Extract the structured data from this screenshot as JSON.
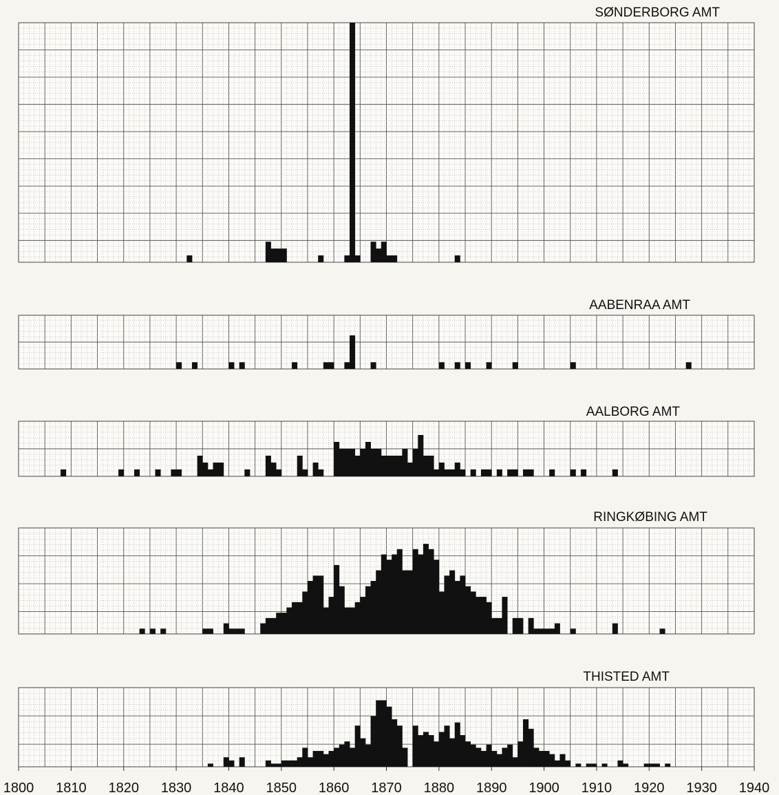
{
  "chart_data": {
    "type": "bar",
    "x_axis": {
      "range": [
        1800,
        1940
      ],
      "ticks": [
        1800,
        1810,
        1820,
        1830,
        1840,
        1850,
        1860,
        1870,
        1880,
        1890,
        1900,
        1910,
        1920,
        1930,
        1940
      ],
      "tick_labels": [
        "1800",
        "1810",
        "1820",
        "1830",
        "1840",
        "1850",
        "1860",
        "1870",
        "1880",
        "1890",
        "1900",
        "1910",
        "1920",
        "1930",
        "1940"
      ]
    },
    "grid": true,
    "colors": {
      "bar": "#111111",
      "grid_major": "#555555",
      "grid_minor": "#9a9a9a",
      "background": "#f7f5f0"
    },
    "panels": [
      {
        "title": "SØNDERBORG AMT",
        "ymax": 35,
        "bars": [
          [
            1832,
            1
          ],
          [
            1847,
            3
          ],
          [
            1848,
            2
          ],
          [
            1849,
            2
          ],
          [
            1850,
            2
          ],
          [
            1857,
            1
          ],
          [
            1862,
            1
          ],
          [
            1863,
            35
          ],
          [
            1864,
            1
          ],
          [
            1867,
            3
          ],
          [
            1868,
            2
          ],
          [
            1869,
            3
          ],
          [
            1870,
            1
          ],
          [
            1871,
            1
          ],
          [
            1883,
            1
          ]
        ]
      },
      {
        "title": "AABENRAA AMT",
        "ymax": 8,
        "bars": [
          [
            1830,
            1
          ],
          [
            1833,
            1
          ],
          [
            1840,
            1
          ],
          [
            1842,
            1
          ],
          [
            1852,
            1
          ],
          [
            1858,
            1
          ],
          [
            1859,
            1
          ],
          [
            1862,
            1
          ],
          [
            1863,
            5
          ],
          [
            1867,
            1
          ],
          [
            1880,
            1
          ],
          [
            1883,
            1
          ],
          [
            1885,
            1
          ],
          [
            1889,
            1
          ],
          [
            1894,
            1
          ],
          [
            1905,
            1
          ],
          [
            1927,
            1
          ]
        ]
      },
      {
        "title": "AALBORG AMT",
        "ymax": 8,
        "bars": [
          [
            1808,
            1
          ],
          [
            1819,
            1
          ],
          [
            1822,
            1
          ],
          [
            1826,
            1
          ],
          [
            1829,
            1
          ],
          [
            1830,
            1
          ],
          [
            1834,
            3
          ],
          [
            1835,
            2
          ],
          [
            1836,
            1
          ],
          [
            1837,
            2
          ],
          [
            1838,
            2
          ],
          [
            1843,
            1
          ],
          [
            1847,
            3
          ],
          [
            1848,
            2
          ],
          [
            1849,
            1
          ],
          [
            1853,
            3
          ],
          [
            1854,
            1
          ],
          [
            1856,
            2
          ],
          [
            1857,
            1
          ],
          [
            1860,
            5
          ],
          [
            1861,
            4
          ],
          [
            1862,
            4
          ],
          [
            1863,
            4
          ],
          [
            1864,
            3
          ],
          [
            1865,
            4
          ],
          [
            1866,
            5
          ],
          [
            1867,
            4
          ],
          [
            1868,
            4
          ],
          [
            1869,
            3
          ],
          [
            1870,
            3
          ],
          [
            1871,
            3
          ],
          [
            1872,
            3
          ],
          [
            1873,
            4
          ],
          [
            1874,
            2
          ],
          [
            1875,
            4
          ],
          [
            1876,
            6
          ],
          [
            1877,
            3
          ],
          [
            1878,
            3
          ],
          [
            1879,
            1
          ],
          [
            1880,
            2
          ],
          [
            1881,
            1
          ],
          [
            1882,
            1
          ],
          [
            1883,
            2
          ],
          [
            1884,
            1
          ],
          [
            1886,
            1
          ],
          [
            1888,
            1
          ],
          [
            1889,
            1
          ],
          [
            1891,
            1
          ],
          [
            1893,
            1
          ],
          [
            1894,
            1
          ],
          [
            1896,
            1
          ],
          [
            1897,
            1
          ],
          [
            1901,
            1
          ],
          [
            1905,
            1
          ],
          [
            1907,
            1
          ],
          [
            1913,
            1
          ]
        ]
      },
      {
        "title": "RINGKØBING AMT",
        "ymax": 20,
        "bars": [
          [
            1823,
            1
          ],
          [
            1825,
            1
          ],
          [
            1827,
            1
          ],
          [
            1835,
            1
          ],
          [
            1836,
            1
          ],
          [
            1839,
            2
          ],
          [
            1840,
            1
          ],
          [
            1841,
            1
          ],
          [
            1842,
            1
          ],
          [
            1846,
            2
          ],
          [
            1847,
            3
          ],
          [
            1848,
            3
          ],
          [
            1849,
            4
          ],
          [
            1850,
            4
          ],
          [
            1851,
            5
          ],
          [
            1852,
            6
          ],
          [
            1853,
            6
          ],
          [
            1854,
            8
          ],
          [
            1855,
            10
          ],
          [
            1856,
            11
          ],
          [
            1857,
            11
          ],
          [
            1858,
            5
          ],
          [
            1859,
            7
          ],
          [
            1860,
            13
          ],
          [
            1861,
            9
          ],
          [
            1862,
            5
          ],
          [
            1863,
            5
          ],
          [
            1864,
            6
          ],
          [
            1865,
            7
          ],
          [
            1866,
            9
          ],
          [
            1867,
            10
          ],
          [
            1868,
            12
          ],
          [
            1869,
            15
          ],
          [
            1870,
            14
          ],
          [
            1871,
            15
          ],
          [
            1872,
            16
          ],
          [
            1873,
            12
          ],
          [
            1874,
            12
          ],
          [
            1875,
            16
          ],
          [
            1876,
            15
          ],
          [
            1877,
            17
          ],
          [
            1878,
            16
          ],
          [
            1879,
            14
          ],
          [
            1880,
            8
          ],
          [
            1881,
            11
          ],
          [
            1882,
            12
          ],
          [
            1883,
            10
          ],
          [
            1884,
            11
          ],
          [
            1885,
            9
          ],
          [
            1886,
            8
          ],
          [
            1887,
            7
          ],
          [
            1888,
            7
          ],
          [
            1889,
            6
          ],
          [
            1890,
            3
          ],
          [
            1891,
            3
          ],
          [
            1892,
            7
          ],
          [
            1894,
            3
          ],
          [
            1895,
            3
          ],
          [
            1897,
            3
          ],
          [
            1898,
            1
          ],
          [
            1899,
            1
          ],
          [
            1900,
            1
          ],
          [
            1901,
            1
          ],
          [
            1902,
            2
          ],
          [
            1905,
            1
          ],
          [
            1913,
            2
          ],
          [
            1922,
            1
          ]
        ]
      },
      {
        "title": "THISTED AMT",
        "ymax": 25,
        "bars": [
          [
            1836,
            1
          ],
          [
            1839,
            3
          ],
          [
            1840,
            2
          ],
          [
            1842,
            3
          ],
          [
            1847,
            2
          ],
          [
            1848,
            1
          ],
          [
            1849,
            1
          ],
          [
            1850,
            2
          ],
          [
            1851,
            2
          ],
          [
            1852,
            2
          ],
          [
            1853,
            3
          ],
          [
            1854,
            6
          ],
          [
            1855,
            3
          ],
          [
            1856,
            5
          ],
          [
            1857,
            5
          ],
          [
            1858,
            4
          ],
          [
            1859,
            5
          ],
          [
            1860,
            6
          ],
          [
            1861,
            7
          ],
          [
            1862,
            8
          ],
          [
            1863,
            6
          ],
          [
            1864,
            13
          ],
          [
            1865,
            9
          ],
          [
            1866,
            7
          ],
          [
            1867,
            16
          ],
          [
            1868,
            21
          ],
          [
            1869,
            21
          ],
          [
            1870,
            19
          ],
          [
            1871,
            15
          ],
          [
            1872,
            13
          ],
          [
            1873,
            6
          ],
          [
            1875,
            13
          ],
          [
            1876,
            10
          ],
          [
            1877,
            11
          ],
          [
            1878,
            10
          ],
          [
            1879,
            8
          ],
          [
            1880,
            11
          ],
          [
            1881,
            13
          ],
          [
            1882,
            9
          ],
          [
            1883,
            14
          ],
          [
            1884,
            10
          ],
          [
            1885,
            8
          ],
          [
            1886,
            7
          ],
          [
            1887,
            6
          ],
          [
            1888,
            5
          ],
          [
            1889,
            7
          ],
          [
            1890,
            5
          ],
          [
            1891,
            4
          ],
          [
            1892,
            6
          ],
          [
            1893,
            7
          ],
          [
            1894,
            3
          ],
          [
            1895,
            8
          ],
          [
            1896,
            15
          ],
          [
            1897,
            12
          ],
          [
            1898,
            6
          ],
          [
            1899,
            5
          ],
          [
            1900,
            5
          ],
          [
            1901,
            4
          ],
          [
            1902,
            2
          ],
          [
            1903,
            4
          ],
          [
            1904,
            2
          ],
          [
            1906,
            1
          ],
          [
            1908,
            1
          ],
          [
            1909,
            1
          ],
          [
            1911,
            1
          ],
          [
            1914,
            2
          ],
          [
            1915,
            1
          ],
          [
            1919,
            1
          ],
          [
            1920,
            1
          ],
          [
            1921,
            1
          ],
          [
            1923,
            1
          ]
        ]
      }
    ]
  }
}
